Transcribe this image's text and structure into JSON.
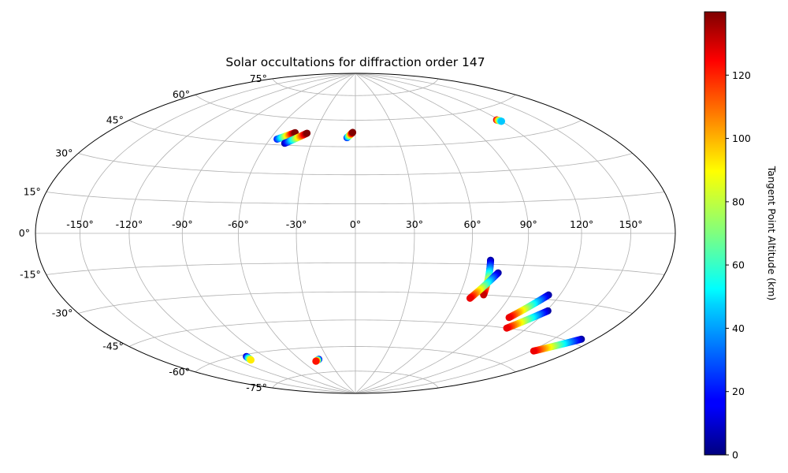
{
  "chart_data": {
    "type": "scatter",
    "projection": "hammer",
    "title": "Solar occultations for diffraction order 147",
    "lon_ticks": [
      -150,
      -120,
      -90,
      -60,
      -30,
      0,
      30,
      60,
      90,
      120,
      150
    ],
    "lat_ticks": [
      -75,
      -60,
      -45,
      -30,
      -15,
      0,
      15,
      30,
      45,
      60,
      75
    ],
    "grid": true,
    "colorbar": {
      "label": "Tangent Point Altitude (km)",
      "colormap": "jet",
      "range": [
        0,
        140
      ],
      "ticks": [
        0,
        20,
        40,
        60,
        80,
        100,
        120
      ]
    },
    "series": [
      {
        "lon_start": -55,
        "lat_start": 48,
        "lon_end": -45,
        "lat_end": 52,
        "alt_start": 20,
        "alt_end": 140
      },
      {
        "lon_start": -48,
        "lat_start": 46,
        "lon_end": -36,
        "lat_end": 52,
        "alt_start": 5,
        "alt_end": 140
      },
      {
        "lon_start": -6,
        "lat_start": 50,
        "lon_end": -2,
        "lat_end": 53,
        "alt_start": 20,
        "alt_end": 140
      },
      {
        "lon_start": 118,
        "lat_start": 54,
        "lon_end": 120,
        "lat_end": 53,
        "alt_start": 130,
        "alt_end": 45
      },
      {
        "lon_start": 71,
        "lat_start": -13,
        "lon_end": 74,
        "lat_end": -30,
        "alt_start": 5,
        "alt_end": 130
      },
      {
        "lon_start": 77,
        "lat_start": -19,
        "lon_end": 67,
        "lat_end": -32,
        "alt_start": 5,
        "alt_end": 125
      },
      {
        "lon_start": 113,
        "lat_start": -28,
        "lon_end": 100,
        "lat_end": -40,
        "alt_start": 5,
        "alt_end": 125
      },
      {
        "lon_start": 121,
        "lat_start": -35,
        "lon_end": 106,
        "lat_end": -45,
        "alt_start": 5,
        "alt_end": 125
      },
      {
        "lon_start": 170,
        "lat_start": -43,
        "lon_end": 152,
        "lat_end": -52,
        "alt_start": 5,
        "alt_end": 125
      },
      {
        "lon_start": -106,
        "lat_start": -61,
        "lon_end": -108,
        "lat_end": -63,
        "alt_start": 5,
        "alt_end": 90
      },
      {
        "lon_start": -40,
        "lat_start": -67,
        "lon_end": -45,
        "lat_end": -68,
        "alt_start": 5,
        "alt_end": 120
      }
    ]
  }
}
